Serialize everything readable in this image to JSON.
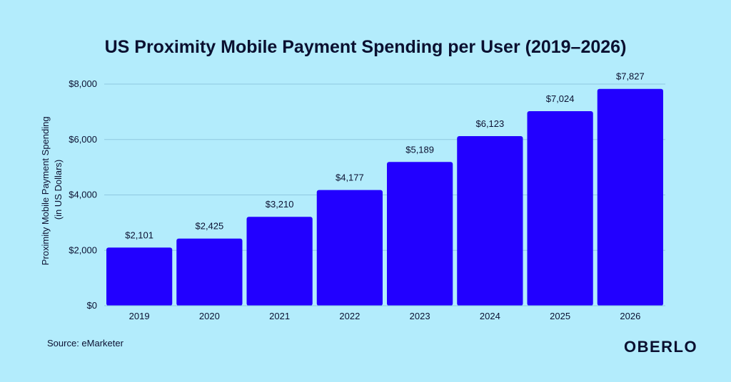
{
  "chart_data": {
    "type": "bar",
    "title": "US Proximity Mobile Payment Spending per User (2019–2026)",
    "ylabel_line1": "Proximity Mobile Payment Spending",
    "ylabel_line2": "(in US Dollars)",
    "categories": [
      "2019",
      "2020",
      "2021",
      "2022",
      "2023",
      "2024",
      "2025",
      "2026"
    ],
    "values": [
      2101,
      2425,
      3210,
      4177,
      5189,
      6123,
      7024,
      7827
    ],
    "value_labels": [
      "$2,101",
      "$2,425",
      "$3,210",
      "$4,177",
      "$5,189",
      "$6,123",
      "$7,024",
      "$7,827"
    ],
    "yticks": [
      0,
      2000,
      4000,
      6000,
      8000
    ],
    "ytick_labels": [
      "$0",
      "$2,000",
      "$4,000",
      "$6,000",
      "$8,000"
    ],
    "ylim": [
      0,
      8000
    ],
    "grid": true,
    "legend": "none"
  },
  "footer": {
    "source": "Source: eMarketer",
    "brand": "OBERLO"
  },
  "colors": {
    "background": "#b3ecfc",
    "bar": "#2200ff",
    "grid": "#8fc8e0",
    "text": "#0b1030"
  }
}
